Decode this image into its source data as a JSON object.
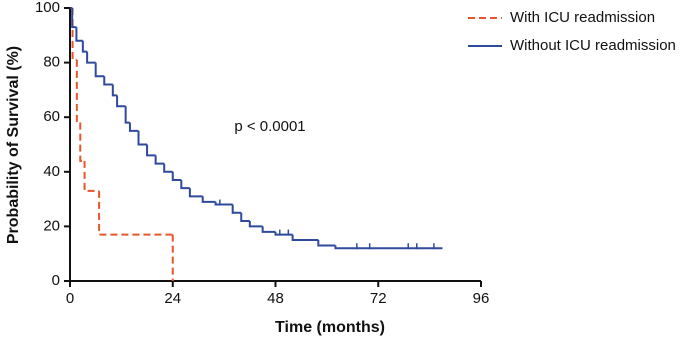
{
  "chart_data": {
    "type": "step",
    "xlabel": "Time (months)",
    "ylabel": "Probability of Survival (%)",
    "annotation": "p < 0.0001",
    "xlim": [
      0,
      96
    ],
    "xticks": [
      0,
      24,
      48,
      72,
      96
    ],
    "ylim": [
      0,
      100
    ],
    "yticks": [
      0,
      20,
      40,
      60,
      80,
      100
    ],
    "legend": "top-right",
    "series": [
      {
        "name": "With ICU readmission",
        "color": "#e8542b",
        "dash": true,
        "x": [
          0,
          0.6,
          1.6,
          2.4,
          3.4,
          6.8,
          24
        ],
        "values": [
          100,
          81,
          58,
          44,
          33,
          17,
          0
        ]
      },
      {
        "name": "Without ICU readmission",
        "color": "#2f4a9c",
        "dash": false,
        "x": [
          0,
          0.5,
          1.5,
          3,
          4,
          6,
          8,
          10,
          11,
          13,
          14,
          16,
          18,
          20,
          22,
          24,
          26,
          28,
          31,
          34,
          38,
          40,
          42,
          45,
          48,
          52,
          58,
          62,
          87
        ],
        "values": [
          100,
          93,
          88,
          84,
          80,
          75,
          72,
          68,
          64,
          58,
          55,
          50,
          46,
          43,
          40,
          37,
          34,
          31,
          29,
          28,
          25,
          22,
          20,
          18,
          17,
          15,
          13,
          12,
          12
        ],
        "censored": [
          35,
          38,
          49,
          51,
          67,
          70,
          79,
          81,
          85
        ]
      }
    ]
  }
}
